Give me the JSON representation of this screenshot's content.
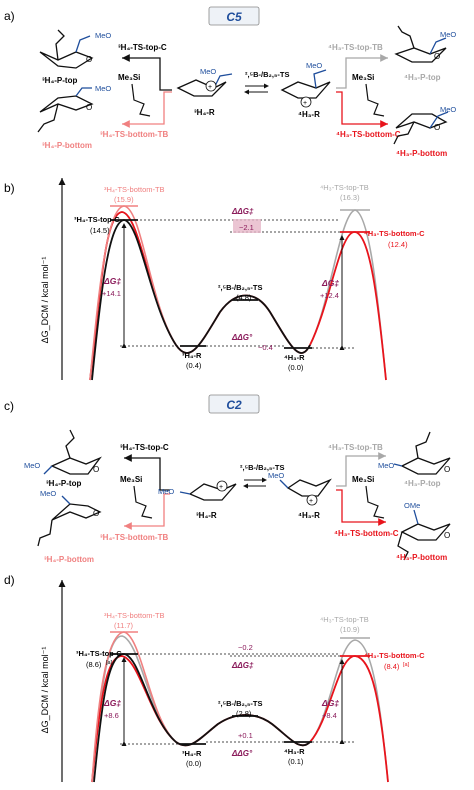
{
  "panels": {
    "a": {
      "letter": "a)",
      "badge": "C5",
      "left_top_product": "³H₄-P-top",
      "left_bottom_product": "³H₄-P-bottom",
      "left_top_ts": "³H₄-TS-top-C",
      "left_bottom_ts": "³H₄-TS-bottom-TB",
      "nucleophile": "Me₃Si",
      "left_reactant": "³H₄-R",
      "equilibrium_ts": "²,⁵B-/B₂,₅-TS",
      "right_reactant": "⁴H₃-R",
      "right_top_ts": "⁴H₃-TS-top-TB",
      "right_top_product": "⁴H₃-P-top",
      "right_bottom_ts": "⁴H₃-TS-bottom-C",
      "right_bottom_product": "⁴H₃-P-bottom",
      "meo": "MeO"
    },
    "b": {
      "letter": "b)",
      "yaxis": "ΔG_DCM / kcal mol⁻¹",
      "ts_left_tb": "³H₄-TS-bottom-TB",
      "ts_left_tb_val": "(15.9)",
      "ts_left_c": "³H₄-TS-top-C",
      "ts_left_c_val": "(14.5)",
      "dg_left": "ΔG‡",
      "dg_left_val": "+14.1",
      "ts_mid": "²,⁵B-/B₂,₅-TS",
      "ts_mid_val": "(4.8)",
      "r_left": "³H₄-R",
      "r_left_val": "(0.4)",
      "r_right": "⁴H₃-R",
      "r_right_val": "(0.0)",
      "ddg_ts": "ΔΔG‡",
      "ddg_ts_val": "−2.1",
      "ddg_r": "ΔΔG°",
      "ddg_r_val": "−0.4",
      "ts_right_tb": "⁴H₃-TS-top-TB",
      "ts_right_tb_val": "(16.3)",
      "ts_right_c": "⁴H₃-TS-bottom-C",
      "ts_right_c_val": "(12.4)",
      "dg_right": "ΔG‡",
      "dg_right_val": "+12.4"
    },
    "c": {
      "letter": "c)",
      "badge": "C2",
      "left_top_product": "³H₄-P-top",
      "left_bottom_product": "³H₄-P-bottom",
      "left_top_ts": "³H₄-TS-top-C",
      "left_bottom_ts": "³H₄-TS-bottom-TB",
      "nucleophile": "Me₃Si",
      "left_reactant": "³H₄-R",
      "equilibrium_ts": "²,⁵B-/B₂,₅-TS",
      "right_reactant": "⁴H₃-R",
      "right_top_ts": "⁴H₃-TS-top-TB",
      "right_top_product": "⁴H₃-P-top",
      "right_bottom_ts": "⁴H₃-TS-bottom-C",
      "right_bottom_product": "⁴H₃-P-bottom",
      "meo": "MeO",
      "ome": "OMe"
    },
    "d": {
      "letter": "d)",
      "yaxis": "ΔG_DCM / kcal mol⁻¹",
      "ts_left_tb": "³H₄-TS-bottom-TB",
      "ts_left_tb_val": "(11.7)",
      "ts_left_c": "³H₄-TS-top-C",
      "ts_left_c_val": "(8.6)",
      "footnote": "[a]",
      "dg_left": "ΔG‡",
      "dg_left_val": "+8.6",
      "ts_mid": "²,⁵B-/B₂,₅-TS",
      "ts_mid_val": "(2.8)",
      "r_left": "³H₄-R",
      "r_left_val": "(0.0)",
      "r_right": "⁴H₃-R",
      "r_right_val": "(0.1)",
      "ddg_ts": "ΔΔG‡",
      "ddg_ts_val": "−0.2",
      "ddg_r": "ΔΔG°",
      "ddg_r_val": "+0.1",
      "ts_right_tb": "⁴H₃-TS-top-TB",
      "ts_right_tb_val": "(10.9)",
      "ts_right_c": "⁴H₃-TS-bottom-C",
      "ts_right_c_val": "(8.4)",
      "dg_right": "ΔG‡",
      "dg_right_val": "+8.4"
    }
  },
  "colors": {
    "black": "#111111",
    "pink": "#f08080",
    "red": "#e8141c",
    "grey": "#a8a8a8",
    "purple": "#8a1a5a",
    "blue": "#1f4e9c",
    "badge_fill": "#eef2f7"
  }
}
